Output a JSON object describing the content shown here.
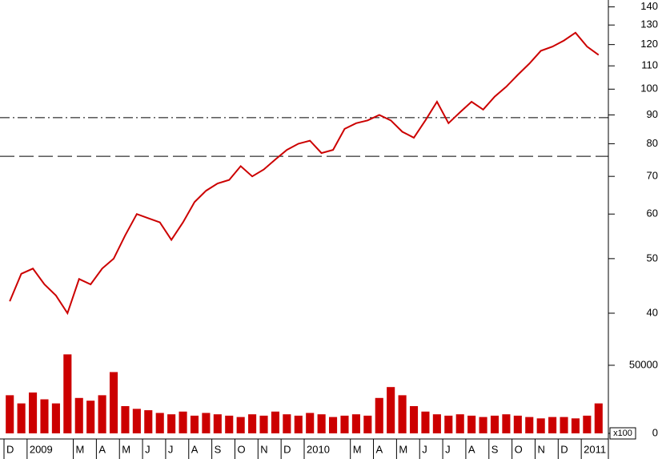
{
  "chart_data": [
    {
      "type": "line",
      "log_scale": true,
      "color": "#cc0000",
      "ylim": [
        35.2,
        144
      ],
      "yticks": [
        40,
        50,
        60,
        70,
        80,
        90,
        100,
        110,
        120,
        130,
        140
      ],
      "reference_lines": [
        {
          "value": 89,
          "style": "dashdot"
        },
        {
          "value": 76,
          "style": "dash"
        }
      ],
      "values": [
        42,
        47,
        48,
        45,
        43,
        40,
        46,
        45,
        48,
        50,
        55,
        60,
        59,
        58,
        54,
        58,
        63,
        66,
        68,
        69,
        73,
        70,
        72,
        75,
        78,
        80,
        81,
        77,
        78,
        85,
        87,
        88,
        90,
        88,
        84,
        82,
        88,
        95,
        87,
        91,
        95,
        92,
        97,
        101,
        106,
        111,
        117,
        119,
        122,
        126,
        119,
        115
      ]
    },
    {
      "type": "bar",
      "color": "#cc0000",
      "axis_unit": "x100",
      "ylim": [
        0,
        59400
      ],
      "yticks": [
        0,
        50000
      ],
      "categories": [
        "D",
        null,
        "2009",
        null,
        null,
        null,
        "M",
        null,
        "A",
        null,
        "M",
        null,
        "J",
        null,
        "J",
        null,
        "A",
        null,
        "S",
        null,
        "O",
        null,
        "N",
        null,
        "D",
        null,
        "2010",
        null,
        null,
        null,
        "M",
        null,
        "A",
        null,
        "M",
        null,
        "J",
        null,
        "J",
        null,
        "A",
        null,
        "S",
        null,
        "O",
        null,
        "N",
        null,
        "D",
        null,
        "2011",
        null
      ],
      "values": [
        28000,
        22000,
        30000,
        25000,
        22000,
        58000,
        26000,
        24000,
        28000,
        45000,
        20000,
        18000,
        17000,
        15000,
        14000,
        16000,
        13000,
        15000,
        14000,
        13000,
        12000,
        14000,
        13000,
        16000,
        14000,
        13000,
        15000,
        14000,
        12000,
        13000,
        14000,
        13000,
        26000,
        34000,
        28000,
        20000,
        16000,
        14000,
        13000,
        14000,
        13000,
        12000,
        13000,
        14000,
        13000,
        12000,
        11000,
        12000,
        12000,
        11000,
        13000,
        22000
      ]
    }
  ]
}
